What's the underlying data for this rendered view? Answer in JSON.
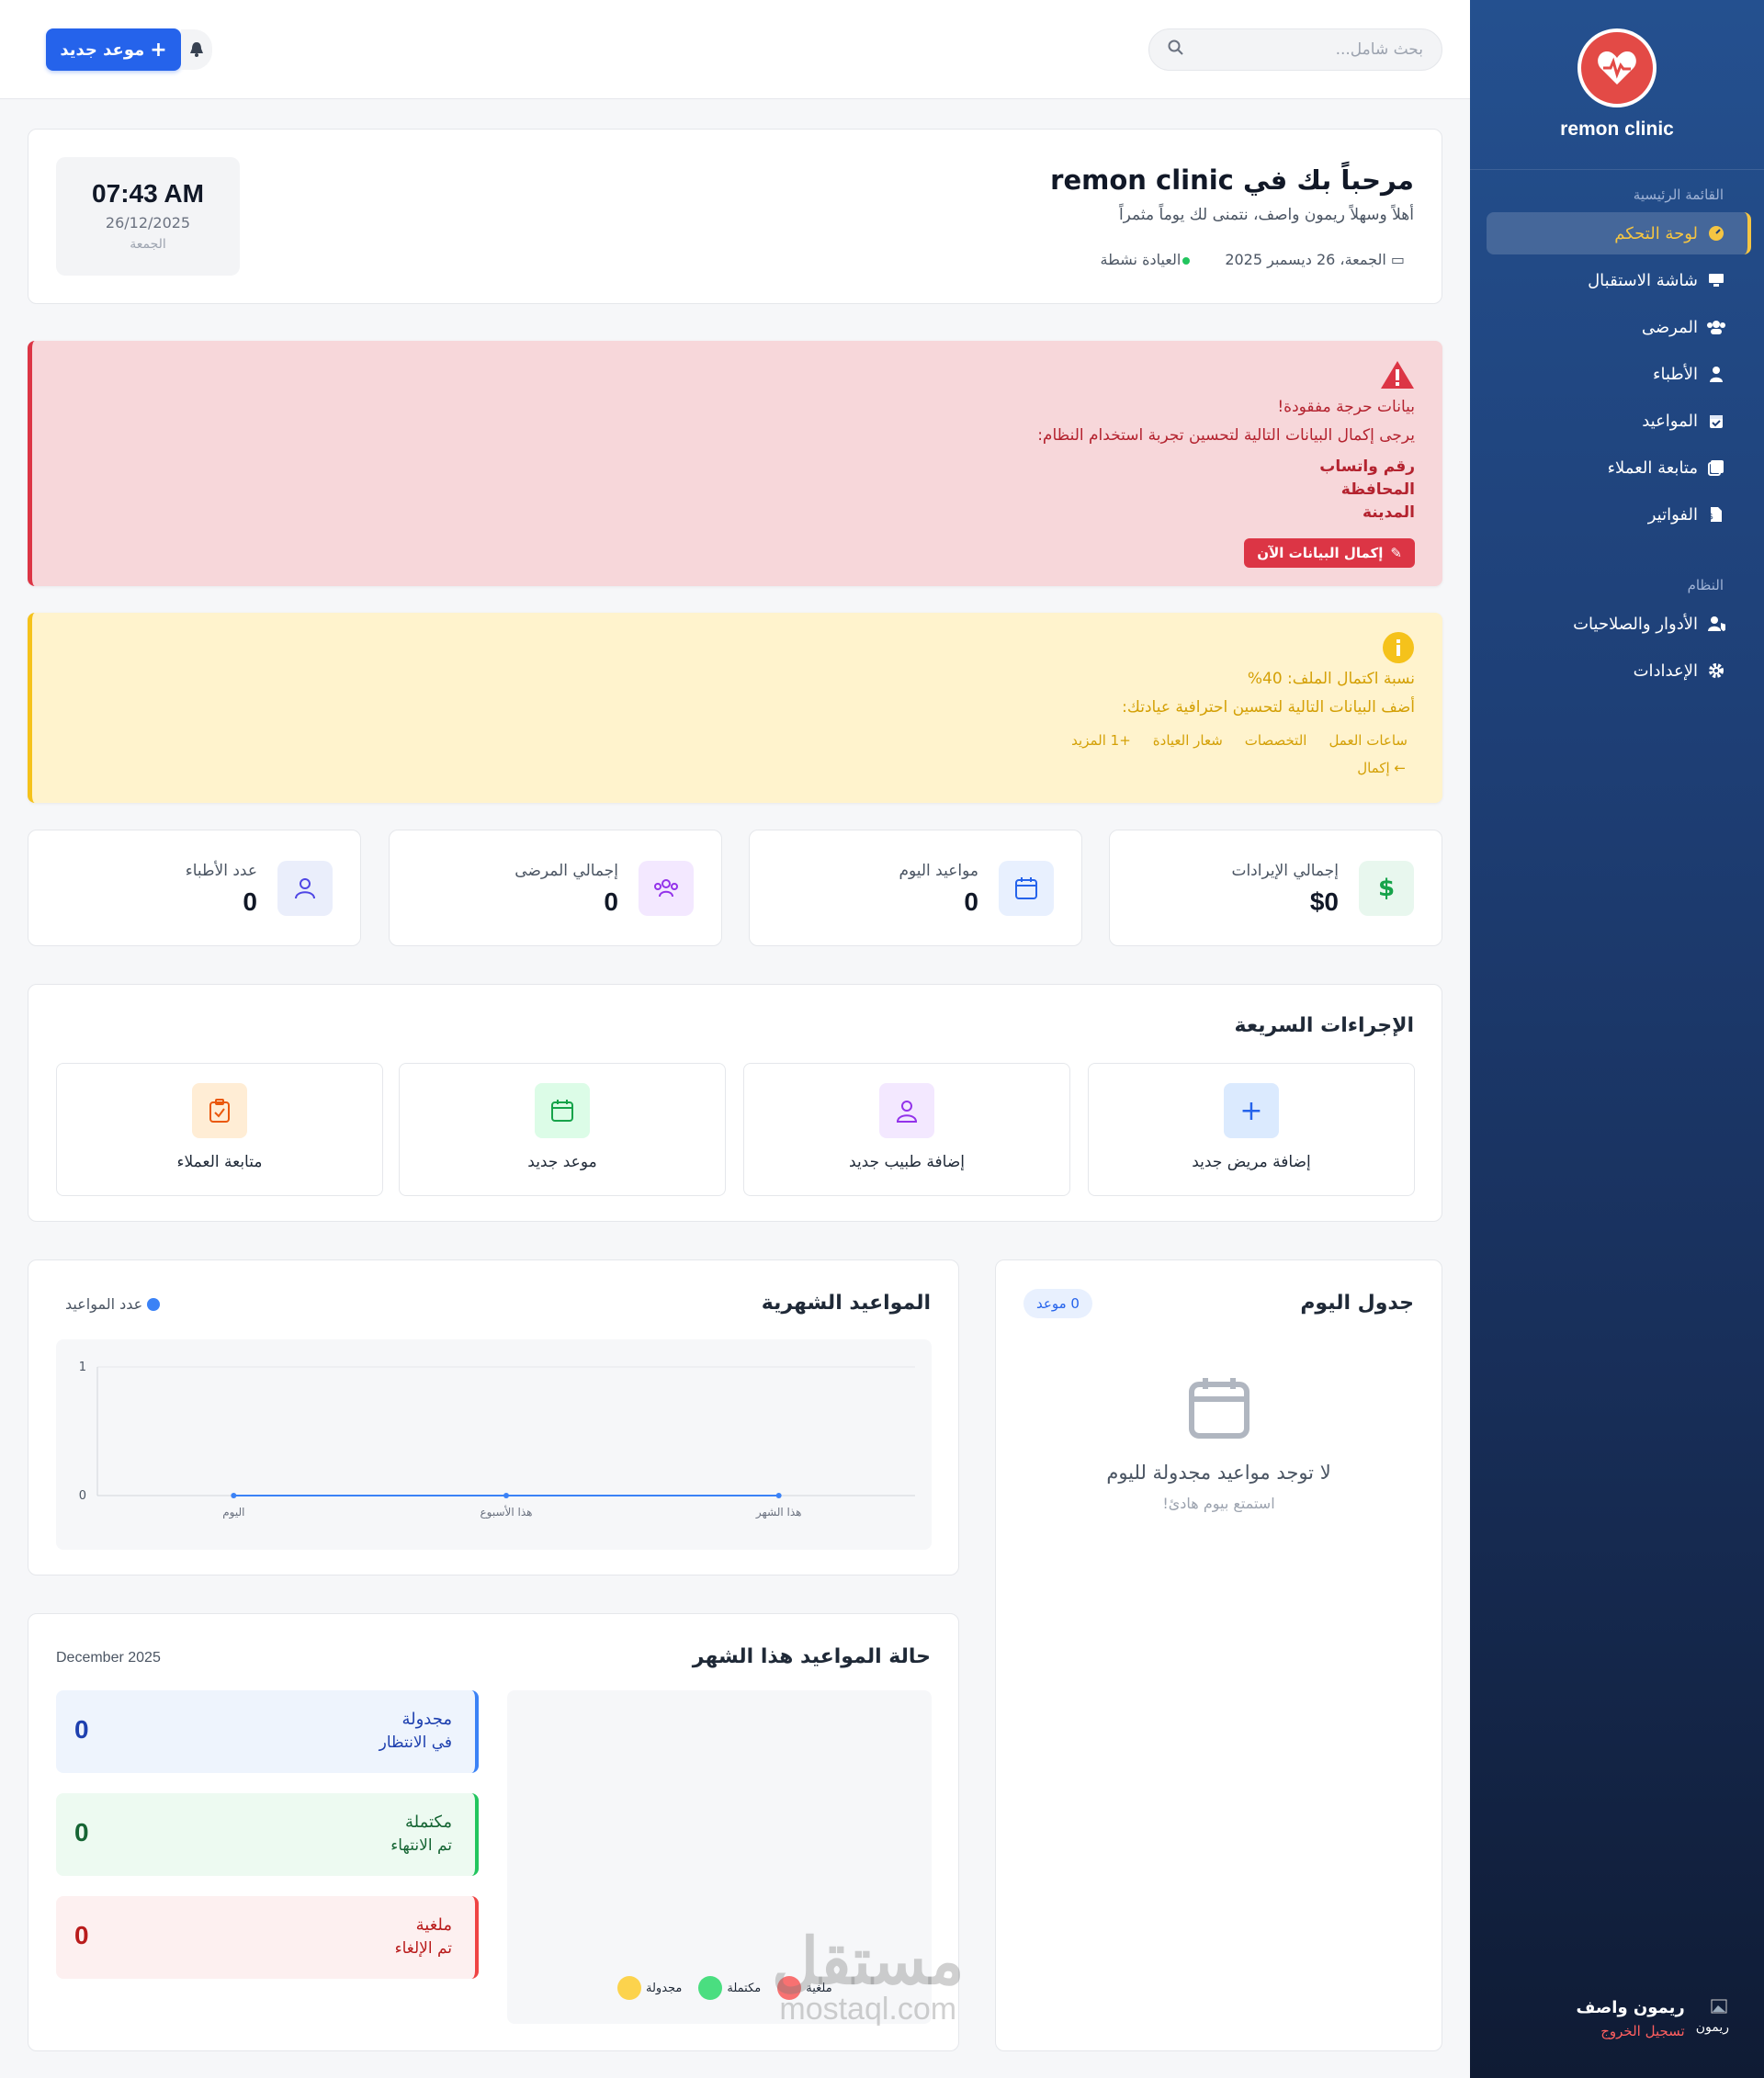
{
  "sidebar": {
    "brand": "remon clinic",
    "section_main": "القائمة الرئيسية",
    "section_system": "النظام",
    "items": [
      {
        "label": "لوحة التحكم",
        "icon": "gauge-icon"
      },
      {
        "label": "شاشة الاستقبال",
        "icon": "monitor-icon"
      },
      {
        "label": "المرضى",
        "icon": "users-icon"
      },
      {
        "label": "الأطباء",
        "icon": "doctor-icon"
      },
      {
        "label": "المواعيد",
        "icon": "calendar-check-icon"
      },
      {
        "label": "متابعة العملاء",
        "icon": "follow-icon"
      },
      {
        "label": "الفواتير",
        "icon": "invoice-icon"
      }
    ],
    "system_items": [
      {
        "label": "الأدوار والصلاحيات",
        "icon": "user-shield-icon"
      },
      {
        "label": "الإعدادات",
        "icon": "gear-icon"
      }
    ],
    "user": {
      "name": "ريمون واصف",
      "logout": "تسجيل الخروج",
      "avatar_alt": "ريمون"
    }
  },
  "topbar": {
    "search_placeholder": "بحث شامل...",
    "new_button": "موعد جديد"
  },
  "welcome": {
    "title": "مرحباً بك في remon clinic",
    "subtitle": "أهلاً وسهلاً ريمون واصف، نتمنى لك يوماً مثمراً",
    "date": "الجمعة، 26 ديسمبر 2025",
    "status": "العيادة نشطة",
    "clock_time": "07:43 AM",
    "clock_date": "26/12/2025",
    "clock_day": "الجمعة"
  },
  "alert_critical": {
    "title": "بيانات حرجة مفقودة!",
    "message": "يرجى إكمال البيانات التالية لتحسين تجربة استخدام النظام:",
    "fields": [
      "رقم واتساب",
      "المحافظة",
      "المدينة"
    ],
    "button": "إكمال البيانات الآن"
  },
  "alert_profile": {
    "title": "نسبة اكتمال الملف: 40%",
    "message": "أضف البيانات التالية لتحسين احترافية عيادتك:",
    "chips": [
      "ساعات العمل",
      "التخصصات",
      "شعار العيادة",
      "+1 المزيد"
    ],
    "link": "إكمال"
  },
  "stats": [
    {
      "label": "إجمالي الإيرادات",
      "value": "$0",
      "icon": "dollar-icon",
      "color": "#16a34a",
      "bg": "#e8f7ee"
    },
    {
      "label": "مواعيد اليوم",
      "value": "0",
      "icon": "calendar-icon",
      "color": "#2563eb",
      "bg": "#e8f0fe"
    },
    {
      "label": "إجمالي المرضى",
      "value": "0",
      "icon": "users-icon",
      "color": "#9333ea",
      "bg": "#f3e8ff"
    },
    {
      "label": "عدد الأطباء",
      "value": "0",
      "icon": "doctor-icon",
      "color": "#4f46e5",
      "bg": "#eaeefb"
    }
  ],
  "quick_actions": {
    "title": "الإجراءات السريعة",
    "items": [
      {
        "label": "إضافة مريض جديد",
        "icon": "plus-icon",
        "color": "#2563eb",
        "bg": "#dbeafe"
      },
      {
        "label": "إضافة طبيب جديد",
        "icon": "user-icon",
        "color": "#9333ea",
        "bg": "#f3e8ff"
      },
      {
        "label": "موعد جديد",
        "icon": "calendar-icon",
        "color": "#16a34a",
        "bg": "#dcfce7"
      },
      {
        "label": "متابعة العملاء",
        "icon": "clipboard-check-icon",
        "color": "#ea580c",
        "bg": "#ffedd5"
      }
    ]
  },
  "schedule": {
    "title": "جدول اليوم",
    "badge": "0 موعد",
    "empty_title": "لا توجد مواعيد مجدولة لليوم",
    "empty_sub": "استمتع بيوم هادئ!"
  },
  "monthly": {
    "title": "المواعيد الشهرية"
  },
  "chart_data": {
    "type": "line",
    "categories": [
      "اليوم",
      "هذا الأسبوع",
      "هذا الشهر"
    ],
    "series": [
      {
        "name": "عدد المواعيد",
        "values": [
          0,
          0,
          0
        ]
      }
    ],
    "yticks": [
      "1",
      "0"
    ],
    "ylim": [
      0,
      1
    ],
    "grid": true,
    "legend": "top-left"
  },
  "status": {
    "title": "حالة المواعيد هذا الشهر",
    "month": "December 2025",
    "boxes": [
      {
        "name": "مجدولة",
        "sub": "في الانتظار",
        "value": "0",
        "color": "#1e40af",
        "bg": "#eef4fd",
        "border": "#3b82f6"
      },
      {
        "name": "مكتملة",
        "sub": "تم الانتهاء",
        "value": "0",
        "color": "#166534",
        "bg": "#edfaf1",
        "border": "#22c55e"
      },
      {
        "name": "ملغية",
        "sub": "تم الإلغاء",
        "value": "0",
        "color": "#b91c1c",
        "bg": "#fdf0f0",
        "border": "#ef4444"
      }
    ],
    "legend": [
      {
        "label": "مجدولة",
        "color": "#fcd34d"
      },
      {
        "label": "مكتملة",
        "color": "#4ade80"
      },
      {
        "label": "ملغية",
        "color": "#f87171"
      }
    ]
  },
  "watermark": {
    "arabic": "مستقل",
    "latin": "mostaql.com"
  }
}
